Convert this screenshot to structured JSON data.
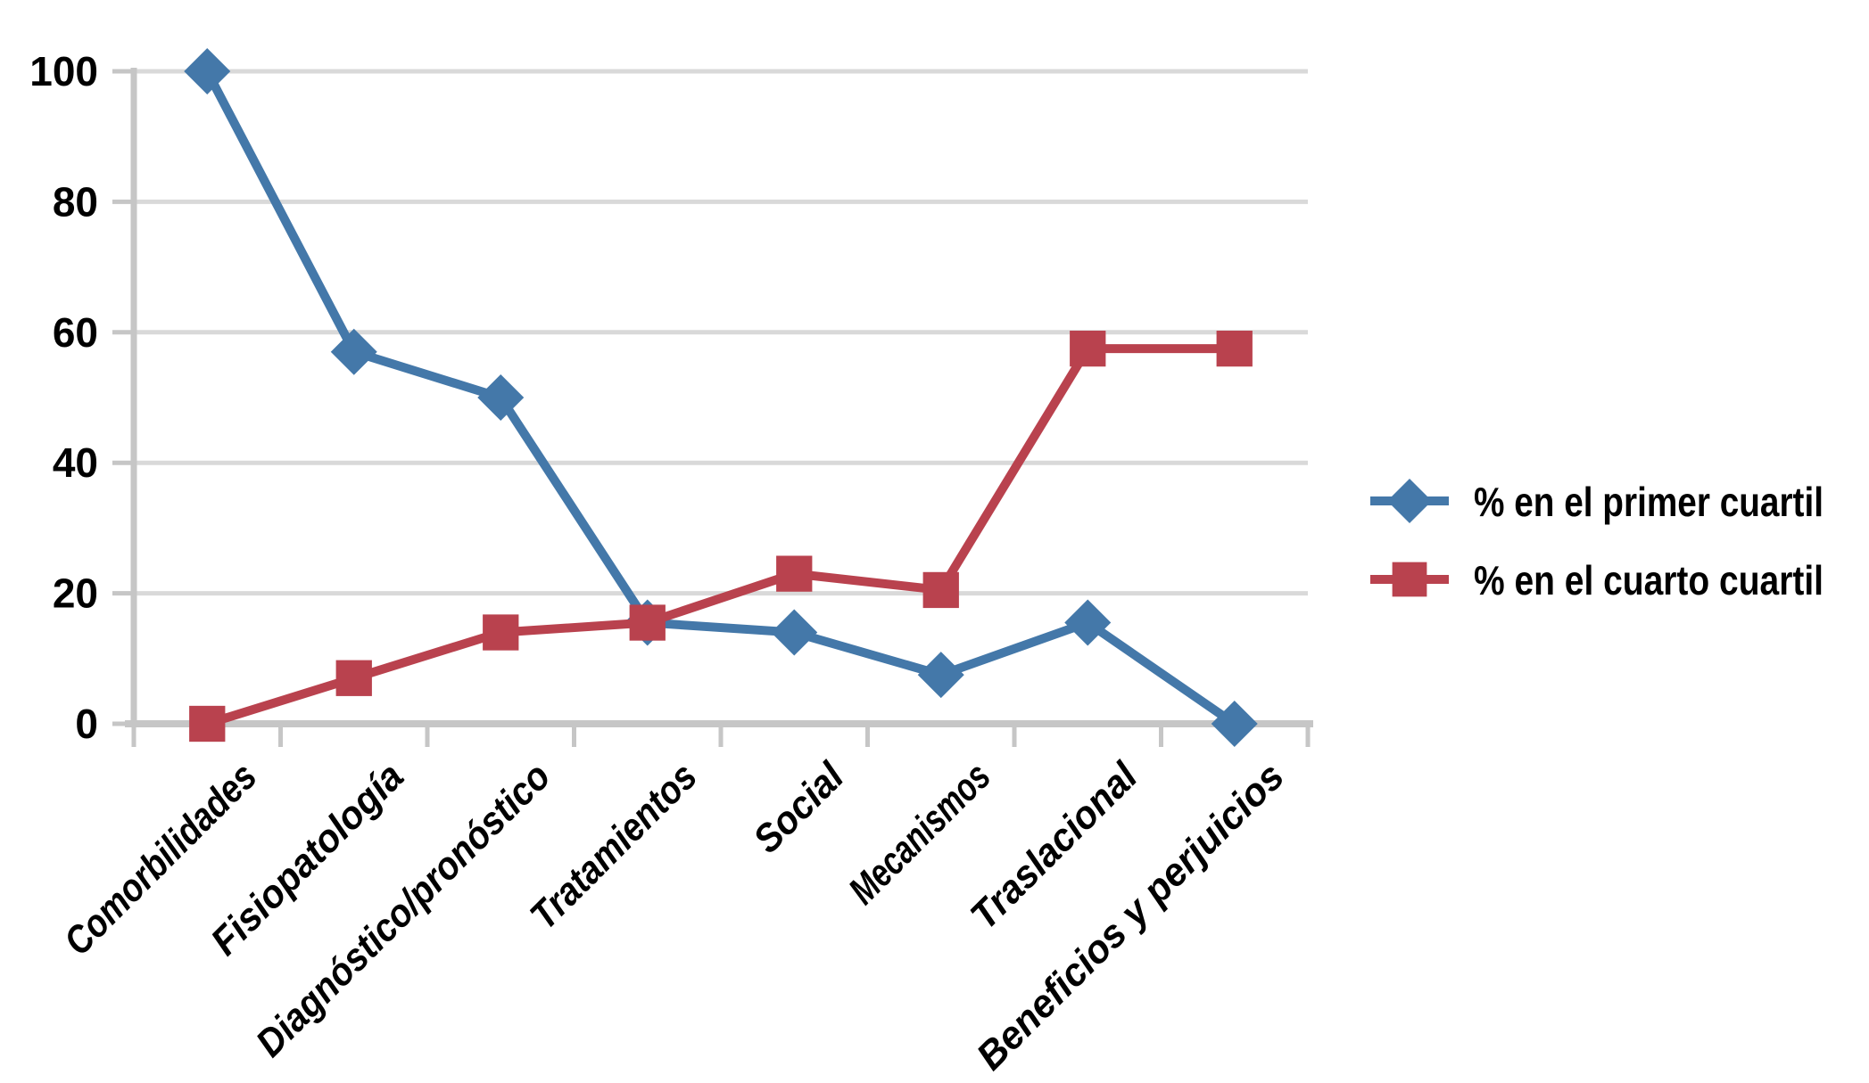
{
  "chart_data": {
    "type": "line",
    "title": "",
    "xlabel": "",
    "ylabel": "",
    "categories": [
      "Comorbilidades",
      "Fisiopatología",
      "Diagnóstico/pronóstico",
      "Tratamientos",
      "Social",
      "Mecanismos",
      "Traslacional",
      "Beneficios y perjuicios"
    ],
    "series": [
      {
        "name": "% en el primer cuartil",
        "marker": "diamond",
        "color": "#4478A9",
        "values": [
          100,
          57,
          50,
          15.5,
          14,
          7.5,
          15.5,
          0
        ]
      },
      {
        "name": "% en el cuarto cuartil",
        "marker": "square",
        "color": "#B9424E",
        "values": [
          0,
          7,
          14,
          15.5,
          23,
          20.5,
          57.5,
          57.5
        ]
      }
    ],
    "ylim": [
      0,
      100
    ],
    "ytick_step": 20,
    "ytick_labels": [
      "0",
      "20",
      "40",
      "60",
      "80",
      "100"
    ],
    "grid": "horizontal",
    "legend_position": "right-center"
  },
  "colors": {
    "background": "#FFFFFF",
    "gridline": "#D9D9D9",
    "axis": "#C6C6C6",
    "text": "#000000"
  }
}
